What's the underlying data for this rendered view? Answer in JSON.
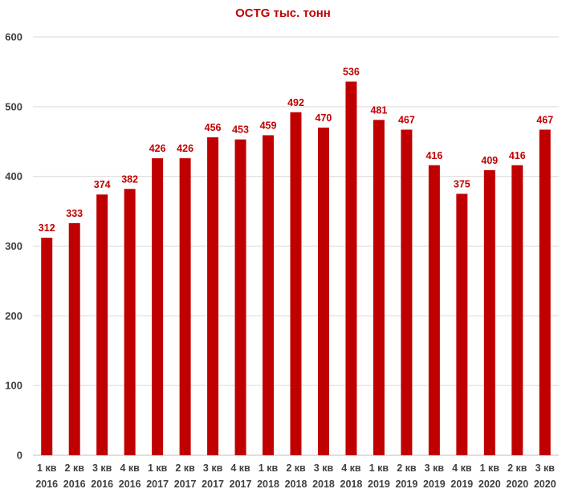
{
  "chart_data": {
    "type": "bar",
    "title": "OCTG тыс. тонн",
    "xlabel": "",
    "ylabel": "",
    "ylim": [
      0,
      600
    ],
    "yticks": [
      0,
      100,
      200,
      300,
      400,
      500,
      600
    ],
    "grid": true,
    "categories": [
      [
        "1 кв",
        "2016"
      ],
      [
        "2 кв",
        "2016"
      ],
      [
        "3 кв",
        "2016"
      ],
      [
        "4 кв",
        "2016"
      ],
      [
        "1 кв",
        "2017"
      ],
      [
        "2 кв",
        "2017"
      ],
      [
        "3 кв",
        "2017"
      ],
      [
        "4 кв",
        "2017"
      ],
      [
        "1 кв",
        "2018"
      ],
      [
        "2 кв",
        "2018"
      ],
      [
        "3 кв",
        "2018"
      ],
      [
        "4 кв",
        "2018"
      ],
      [
        "1 кв",
        "2019"
      ],
      [
        "2 кв",
        "2019"
      ],
      [
        "3 кв",
        "2019"
      ],
      [
        "4 кв",
        "2019"
      ],
      [
        "1 кв",
        "2020"
      ],
      [
        "2 кв",
        "2020"
      ],
      [
        "3 кв",
        "2020"
      ]
    ],
    "values": [
      312,
      333,
      374,
      382,
      426,
      426,
      456,
      453,
      459,
      492,
      470,
      536,
      481,
      467,
      416,
      375,
      409,
      416,
      467
    ],
    "bar_color": "#C00000",
    "label_color": "#C00000",
    "title_color": "#C00000"
  }
}
